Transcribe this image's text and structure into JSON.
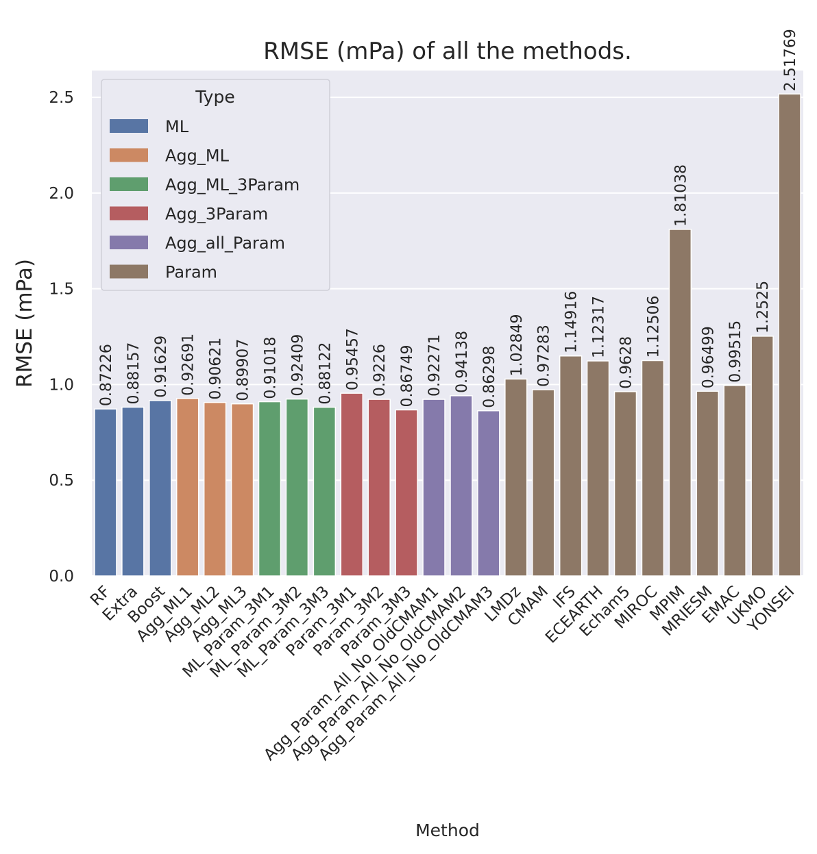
{
  "chart_data": {
    "type": "bar",
    "title": "RMSE (mPa) of all the methods.",
    "xlabel": "Method",
    "ylabel": "RMSE (mPa)",
    "ylim": [
      0,
      2.64
    ],
    "yticks": [
      "0.0",
      "0.5",
      "1.0",
      "1.5",
      "2.0",
      "2.5"
    ],
    "grid": true,
    "legend": {
      "title": "Type",
      "placement": "top-left",
      "entries": [
        {
          "name": "ML",
          "color": "#5875a4"
        },
        {
          "name": "Agg_ML",
          "color": "#cc8963"
        },
        {
          "name": "Agg_ML_3Param",
          "color": "#5f9e6e"
        },
        {
          "name": "Agg_3Param",
          "color": "#b55d60"
        },
        {
          "name": "Agg_all_Param",
          "color": "#857aab"
        },
        {
          "name": "Param",
          "color": "#8d7866"
        }
      ]
    },
    "categories": [
      "RF",
      "Extra",
      "Boost",
      "Agg_ML1",
      "Agg_ML2",
      "Agg_ML3",
      "ML_Param_3M1",
      "ML_Param_3M2",
      "ML_Param_3M3",
      "Param_3M1",
      "Param_3M2",
      "Param_3M3",
      "Agg_Param_All_No_OldCMAM1",
      "Agg_Param_All_No_OldCMAM2",
      "Agg_Param_All_No_OldCMAM3",
      "LMDz",
      "CMAM",
      "IFS",
      "ECEARTH",
      "Echam5",
      "MIROC",
      "MPIM",
      "MRIESM",
      "EMAC",
      "UKMO",
      "YONSEI"
    ],
    "values": [
      0.87226,
      0.88157,
      0.91629,
      0.92691,
      0.90621,
      0.89907,
      0.91018,
      0.92409,
      0.88122,
      0.95457,
      0.9226,
      0.86749,
      0.92271,
      0.94138,
      0.86298,
      1.02849,
      0.97283,
      1.14916,
      1.12317,
      0.9628,
      1.12506,
      1.81038,
      0.96499,
      0.99515,
      1.2525,
      2.51769
    ],
    "value_labels": [
      "0.87226",
      "0.88157",
      "0.91629",
      "0.92691",
      "0.90621",
      "0.89907",
      "0.91018",
      "0.92409",
      "0.88122",
      "0.95457",
      "0.9226",
      "0.86749",
      "0.92271",
      "0.94138",
      "0.86298",
      "1.02849",
      "0.97283",
      "1.14916",
      "1.12317",
      "0.9628",
      "1.12506",
      "1.81038",
      "0.96499",
      "0.99515",
      "1.2525",
      "2.51769"
    ],
    "types": [
      "ML",
      "ML",
      "ML",
      "Agg_ML",
      "Agg_ML",
      "Agg_ML",
      "Agg_ML_3Param",
      "Agg_ML_3Param",
      "Agg_ML_3Param",
      "Agg_3Param",
      "Agg_3Param",
      "Agg_3Param",
      "Agg_all_Param",
      "Agg_all_Param",
      "Agg_all_Param",
      "Param",
      "Param",
      "Param",
      "Param",
      "Param",
      "Param",
      "Param",
      "Param",
      "Param",
      "Param",
      "Param"
    ],
    "colors": {
      "background": "#eaeaf2",
      "grid": "#ffffff"
    }
  }
}
